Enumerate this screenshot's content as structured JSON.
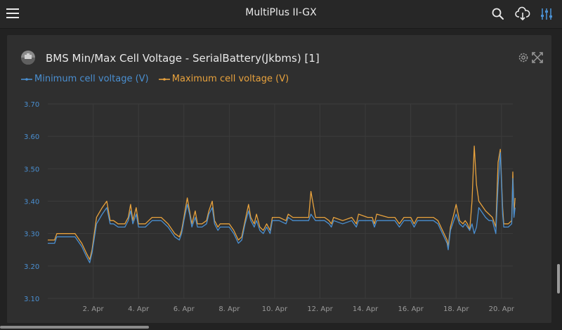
{
  "header": {
    "title": "MultiPlus II-GX",
    "icons": [
      "menu-icon",
      "search-icon",
      "cloud-download-icon",
      "sliders-icon"
    ]
  },
  "panel": {
    "title": "BMS Min/Max Cell Voltage - SerialBattery(Jkbms) [1]",
    "icons": [
      "battery-logo-icon",
      "gear-icon",
      "expand-icon"
    ]
  },
  "colors": {
    "min_series": "#4a8fd1",
    "max_series": "#e8a23d",
    "grid": "#3c3c3c",
    "axis_label": "#4a8fd1",
    "tick_label": "#9a9a9a"
  },
  "chart_data": {
    "type": "line",
    "title": "BMS Min/Max Cell Voltage - SerialBattery(Jkbms) [1]",
    "xlabel": "",
    "ylabel": "",
    "ylim": [
      3.1,
      3.7
    ],
    "yticks": [
      "3.70",
      "3.60",
      "3.50",
      "3.40",
      "3.30",
      "3.20",
      "3.10"
    ],
    "xlim": [
      0.0,
      20.5
    ],
    "xticks": [
      {
        "x": 2,
        "label": "2. Apr"
      },
      {
        "x": 4,
        "label": "4. Apr"
      },
      {
        "x": 6,
        "label": "6. Apr"
      },
      {
        "x": 8,
        "label": "8. Apr"
      },
      {
        "x": 10,
        "label": "10. Apr"
      },
      {
        "x": 12,
        "label": "12. Apr"
      },
      {
        "x": 14,
        "label": "14. Apr"
      },
      {
        "x": 16,
        "label": "16. Apr"
      },
      {
        "x": 18,
        "label": "18. Apr"
      },
      {
        "x": 20,
        "label": "20. Apr"
      }
    ],
    "grid": true,
    "legend": "top-left",
    "series": [
      {
        "name": "Minimum cell voltage (V)",
        "points": [
          [
            0.0,
            3.27
          ],
          [
            0.3,
            3.27
          ],
          [
            0.4,
            3.29
          ],
          [
            0.8,
            3.29
          ],
          [
            1.2,
            3.29
          ],
          [
            1.5,
            3.26
          ],
          [
            1.7,
            3.23
          ],
          [
            1.85,
            3.21
          ],
          [
            1.95,
            3.24
          ],
          [
            2.15,
            3.33
          ],
          [
            2.4,
            3.36
          ],
          [
            2.6,
            3.38
          ],
          [
            2.75,
            3.33
          ],
          [
            2.9,
            3.33
          ],
          [
            3.1,
            3.32
          ],
          [
            3.4,
            3.32
          ],
          [
            3.55,
            3.34
          ],
          [
            3.65,
            3.37
          ],
          [
            3.75,
            3.33
          ],
          [
            3.9,
            3.36
          ],
          [
            4.0,
            3.32
          ],
          [
            4.3,
            3.32
          ],
          [
            4.45,
            3.33
          ],
          [
            4.6,
            3.34
          ],
          [
            5.0,
            3.34
          ],
          [
            5.3,
            3.32
          ],
          [
            5.6,
            3.29
          ],
          [
            5.8,
            3.28
          ],
          [
            5.9,
            3.3
          ],
          [
            6.0,
            3.34
          ],
          [
            6.15,
            3.39
          ],
          [
            6.25,
            3.36
          ],
          [
            6.35,
            3.32
          ],
          [
            6.5,
            3.35
          ],
          [
            6.6,
            3.32
          ],
          [
            6.8,
            3.32
          ],
          [
            7.0,
            3.33
          ],
          [
            7.1,
            3.36
          ],
          [
            7.25,
            3.38
          ],
          [
            7.35,
            3.33
          ],
          [
            7.5,
            3.31
          ],
          [
            7.6,
            3.32
          ],
          [
            8.0,
            3.32
          ],
          [
            8.2,
            3.3
          ],
          [
            8.4,
            3.27
          ],
          [
            8.55,
            3.28
          ],
          [
            8.7,
            3.33
          ],
          [
            8.85,
            3.37
          ],
          [
            8.95,
            3.34
          ],
          [
            9.1,
            3.32
          ],
          [
            9.2,
            3.34
          ],
          [
            9.35,
            3.31
          ],
          [
            9.5,
            3.3
          ],
          [
            9.65,
            3.32
          ],
          [
            9.8,
            3.3
          ],
          [
            9.9,
            3.34
          ],
          [
            10.2,
            3.34
          ],
          [
            10.5,
            3.33
          ],
          [
            10.6,
            3.35
          ],
          [
            10.8,
            3.34
          ],
          [
            11.5,
            3.34
          ],
          [
            11.6,
            3.36
          ],
          [
            11.8,
            3.34
          ],
          [
            12.2,
            3.34
          ],
          [
            12.4,
            3.33
          ],
          [
            12.5,
            3.32
          ],
          [
            12.6,
            3.34
          ],
          [
            13.0,
            3.33
          ],
          [
            13.4,
            3.34
          ],
          [
            13.6,
            3.32
          ],
          [
            13.7,
            3.34
          ],
          [
            14.1,
            3.34
          ],
          [
            14.3,
            3.34
          ],
          [
            14.4,
            3.32
          ],
          [
            14.5,
            3.34
          ],
          [
            15.0,
            3.34
          ],
          [
            15.3,
            3.34
          ],
          [
            15.5,
            3.32
          ],
          [
            15.7,
            3.34
          ],
          [
            16.0,
            3.34
          ],
          [
            16.15,
            3.32
          ],
          [
            16.3,
            3.34
          ],
          [
            16.6,
            3.34
          ],
          [
            17.0,
            3.34
          ],
          [
            17.2,
            3.33
          ],
          [
            17.4,
            3.3
          ],
          [
            17.6,
            3.27
          ],
          [
            17.65,
            3.25
          ],
          [
            17.75,
            3.31
          ],
          [
            17.9,
            3.34
          ],
          [
            18.0,
            3.36
          ],
          [
            18.15,
            3.33
          ],
          [
            18.3,
            3.32
          ],
          [
            18.4,
            3.33
          ],
          [
            18.5,
            3.32
          ],
          [
            18.6,
            3.31
          ],
          [
            18.7,
            3.33
          ],
          [
            18.8,
            3.3
          ],
          [
            18.9,
            3.32
          ],
          [
            19.0,
            3.38
          ],
          [
            19.2,
            3.36
          ],
          [
            19.3,
            3.35
          ],
          [
            19.45,
            3.34
          ],
          [
            19.6,
            3.34
          ],
          [
            19.75,
            3.3
          ],
          [
            19.85,
            3.45
          ],
          [
            19.95,
            3.55
          ],
          [
            20.05,
            3.36
          ],
          [
            20.1,
            3.32
          ],
          [
            20.3,
            3.32
          ],
          [
            20.45,
            3.33
          ],
          [
            20.5,
            3.47
          ],
          [
            20.55,
            3.35
          ],
          [
            20.6,
            3.38
          ]
        ]
      },
      {
        "name": "Maximum cell voltage (V)",
        "points": [
          [
            0.0,
            3.28
          ],
          [
            0.3,
            3.28
          ],
          [
            0.4,
            3.3
          ],
          [
            0.8,
            3.3
          ],
          [
            1.2,
            3.3
          ],
          [
            1.5,
            3.27
          ],
          [
            1.7,
            3.24
          ],
          [
            1.85,
            3.22
          ],
          [
            1.95,
            3.25
          ],
          [
            2.15,
            3.35
          ],
          [
            2.4,
            3.38
          ],
          [
            2.6,
            3.4
          ],
          [
            2.75,
            3.34
          ],
          [
            2.9,
            3.34
          ],
          [
            3.1,
            3.33
          ],
          [
            3.4,
            3.33
          ],
          [
            3.55,
            3.35
          ],
          [
            3.65,
            3.39
          ],
          [
            3.75,
            3.34
          ],
          [
            3.9,
            3.38
          ],
          [
            4.0,
            3.33
          ],
          [
            4.3,
            3.33
          ],
          [
            4.45,
            3.34
          ],
          [
            4.6,
            3.35
          ],
          [
            5.0,
            3.35
          ],
          [
            5.3,
            3.33
          ],
          [
            5.6,
            3.3
          ],
          [
            5.8,
            3.29
          ],
          [
            5.9,
            3.31
          ],
          [
            6.0,
            3.35
          ],
          [
            6.15,
            3.41
          ],
          [
            6.25,
            3.37
          ],
          [
            6.35,
            3.33
          ],
          [
            6.5,
            3.37
          ],
          [
            6.6,
            3.33
          ],
          [
            6.8,
            3.33
          ],
          [
            7.0,
            3.34
          ],
          [
            7.1,
            3.37
          ],
          [
            7.25,
            3.4
          ],
          [
            7.35,
            3.34
          ],
          [
            7.5,
            3.32
          ],
          [
            7.6,
            3.33
          ],
          [
            8.0,
            3.33
          ],
          [
            8.2,
            3.31
          ],
          [
            8.4,
            3.28
          ],
          [
            8.55,
            3.29
          ],
          [
            8.7,
            3.34
          ],
          [
            8.85,
            3.39
          ],
          [
            8.95,
            3.35
          ],
          [
            9.1,
            3.33
          ],
          [
            9.2,
            3.36
          ],
          [
            9.35,
            3.32
          ],
          [
            9.5,
            3.31
          ],
          [
            9.65,
            3.33
          ],
          [
            9.8,
            3.31
          ],
          [
            9.9,
            3.35
          ],
          [
            10.2,
            3.35
          ],
          [
            10.5,
            3.34
          ],
          [
            10.6,
            3.36
          ],
          [
            10.8,
            3.35
          ],
          [
            11.5,
            3.35
          ],
          [
            11.6,
            3.43
          ],
          [
            11.8,
            3.35
          ],
          [
            12.2,
            3.35
          ],
          [
            12.4,
            3.34
          ],
          [
            12.5,
            3.33
          ],
          [
            12.6,
            3.35
          ],
          [
            13.0,
            3.34
          ],
          [
            13.4,
            3.35
          ],
          [
            13.6,
            3.33
          ],
          [
            13.7,
            3.36
          ],
          [
            14.1,
            3.35
          ],
          [
            14.3,
            3.35
          ],
          [
            14.4,
            3.33
          ],
          [
            14.5,
            3.36
          ],
          [
            15.0,
            3.35
          ],
          [
            15.3,
            3.35
          ],
          [
            15.5,
            3.33
          ],
          [
            15.7,
            3.35
          ],
          [
            16.0,
            3.35
          ],
          [
            16.15,
            3.33
          ],
          [
            16.3,
            3.35
          ],
          [
            16.6,
            3.35
          ],
          [
            17.0,
            3.35
          ],
          [
            17.2,
            3.34
          ],
          [
            17.4,
            3.31
          ],
          [
            17.6,
            3.28
          ],
          [
            17.65,
            3.26
          ],
          [
            17.75,
            3.32
          ],
          [
            17.9,
            3.36
          ],
          [
            18.0,
            3.39
          ],
          [
            18.15,
            3.34
          ],
          [
            18.3,
            3.33
          ],
          [
            18.4,
            3.34
          ],
          [
            18.5,
            3.33
          ],
          [
            18.6,
            3.31
          ],
          [
            18.7,
            3.4
          ],
          [
            18.8,
            3.57
          ],
          [
            18.9,
            3.45
          ],
          [
            19.0,
            3.4
          ],
          [
            19.2,
            3.38
          ],
          [
            19.3,
            3.37
          ],
          [
            19.45,
            3.36
          ],
          [
            19.6,
            3.35
          ],
          [
            19.75,
            3.32
          ],
          [
            19.85,
            3.52
          ],
          [
            19.95,
            3.56
          ],
          [
            20.05,
            3.38
          ],
          [
            20.1,
            3.33
          ],
          [
            20.3,
            3.33
          ],
          [
            20.45,
            3.34
          ],
          [
            20.5,
            3.49
          ],
          [
            20.55,
            3.36
          ],
          [
            20.6,
            3.41
          ]
        ]
      }
    ]
  }
}
